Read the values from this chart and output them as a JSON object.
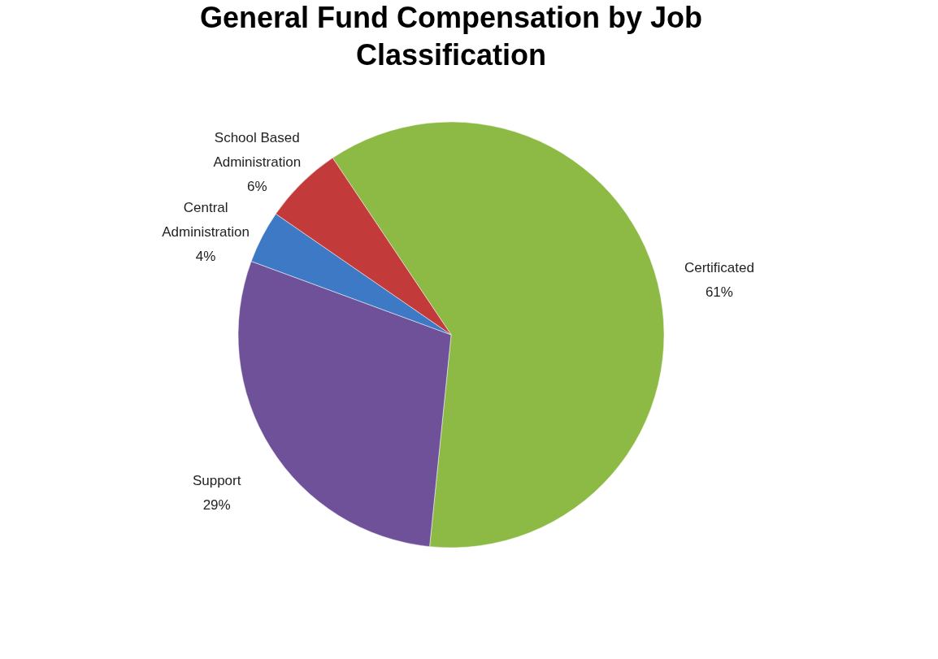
{
  "chart_data": {
    "type": "pie",
    "title": "General Fund Compensation by Job Classification",
    "categories": [
      "Certificated",
      "Support",
      "Central Administration",
      "School Based Administration"
    ],
    "values": [
      61,
      29,
      4,
      6
    ],
    "value_labels": [
      "61%",
      "29%",
      "4%",
      "6%"
    ],
    "colors": [
      "#8dba45",
      "#6f519a",
      "#3d79c4",
      "#c23b3a"
    ],
    "legend": false
  }
}
